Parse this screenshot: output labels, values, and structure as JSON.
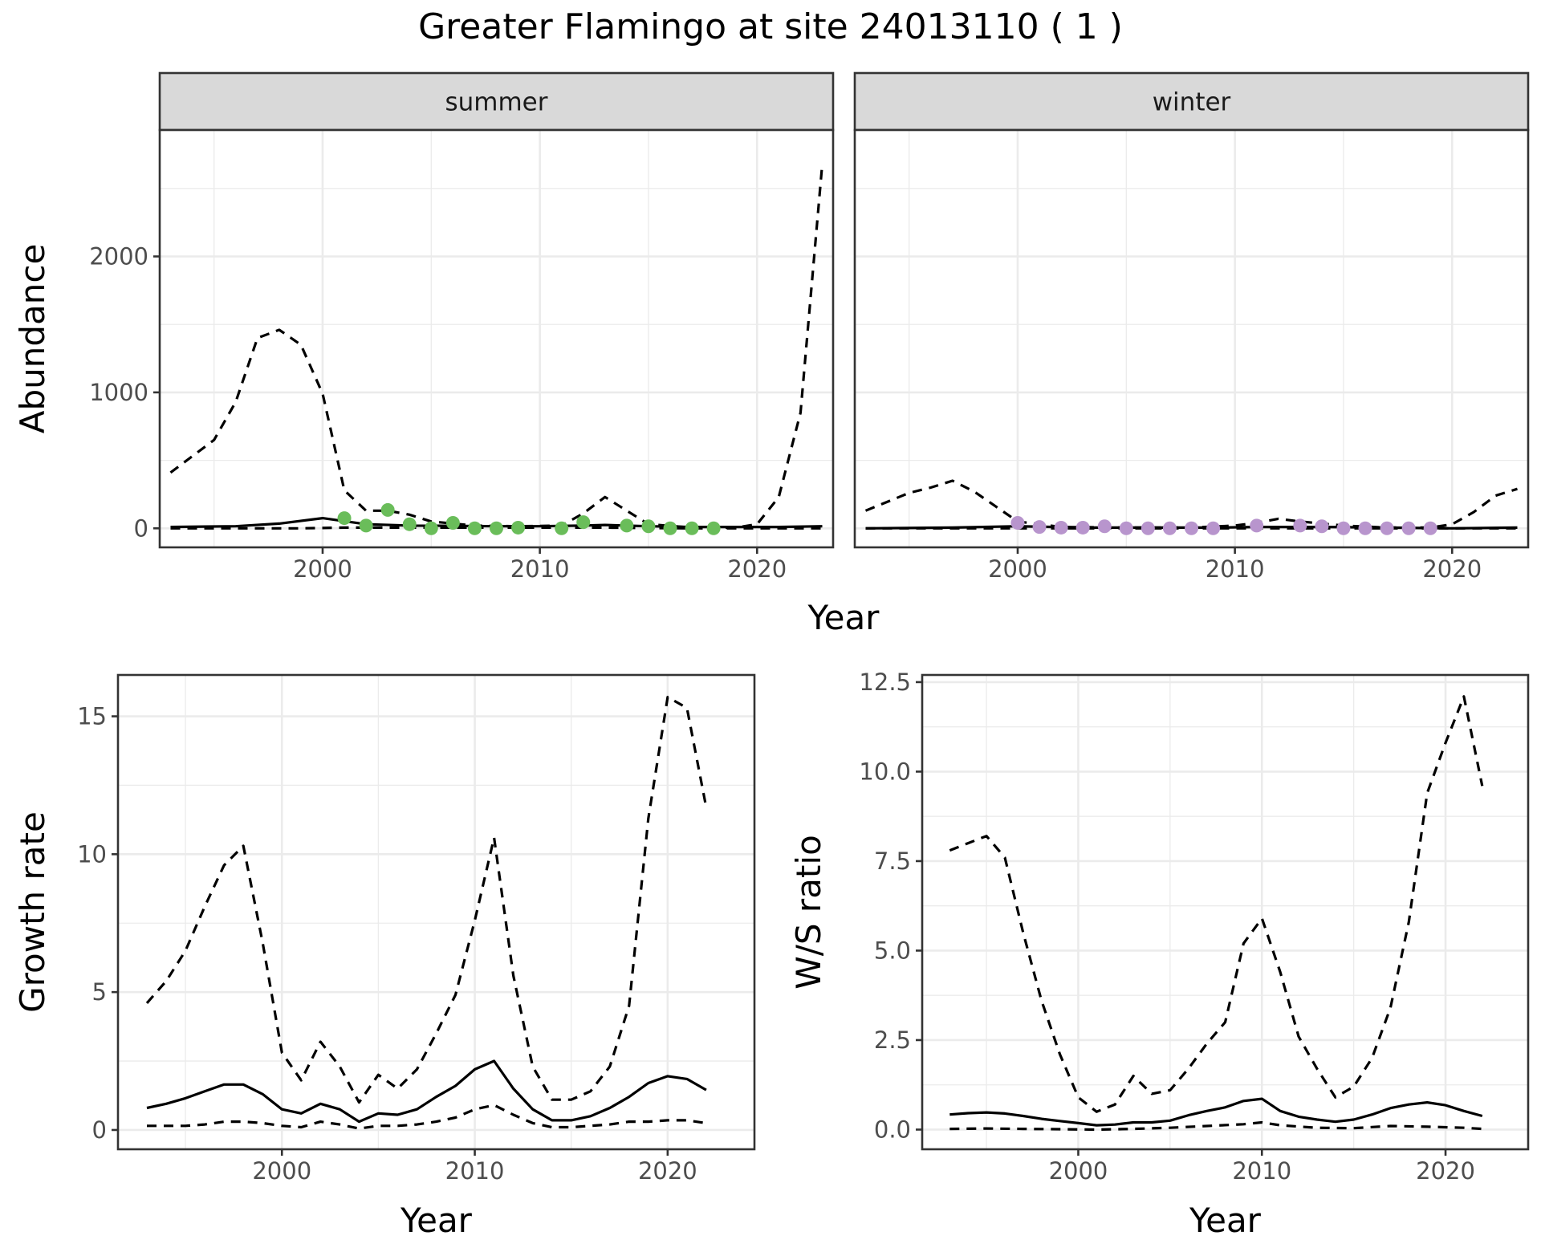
{
  "title": "Greater Flamingo at site 24013110 ( 1 )",
  "colors": {
    "summer_points": "#6abd5a",
    "winter_points": "#b895cd",
    "lines": "#000000",
    "strip_bg": "#d9d9d9",
    "grid": "#ebebeb"
  },
  "chart_data": [
    {
      "type": "line",
      "panel": "abundance",
      "facets": [
        "summer",
        "winter"
      ],
      "xlabel": "Year",
      "ylabel": "Abundance",
      "xlim": [
        1992.5,
        2023.5
      ],
      "ylim": [
        -140,
        2930
      ],
      "xticks": [
        2000,
        2010,
        2020
      ],
      "yticks": [
        0,
        1000,
        2000
      ],
      "grid": true,
      "summer": {
        "estimate": [
          [
            1993,
            10
          ],
          [
            1996,
            15
          ],
          [
            1998,
            35
          ],
          [
            2000,
            75
          ],
          [
            2002,
            30
          ],
          [
            2004,
            20
          ],
          [
            2006,
            18
          ],
          [
            2008,
            15
          ],
          [
            2010,
            15
          ],
          [
            2012,
            20
          ],
          [
            2013,
            25
          ],
          [
            2015,
            15
          ],
          [
            2017,
            10
          ],
          [
            2019,
            10
          ],
          [
            2021,
            10
          ],
          [
            2023,
            15
          ]
        ],
        "upper": [
          [
            1993,
            410
          ],
          [
            1995,
            650
          ],
          [
            1996,
            930
          ],
          [
            1997,
            1400
          ],
          [
            1998,
            1460
          ],
          [
            1999,
            1350
          ],
          [
            2000,
            990
          ],
          [
            2001,
            280
          ],
          [
            2002,
            130
          ],
          [
            2003,
            130
          ],
          [
            2004,
            100
          ],
          [
            2005,
            50
          ],
          [
            2007,
            20
          ],
          [
            2009,
            15
          ],
          [
            2011,
            20
          ],
          [
            2012,
            110
          ],
          [
            2013,
            230
          ],
          [
            2014,
            130
          ],
          [
            2015,
            30
          ],
          [
            2017,
            5
          ],
          [
            2019,
            5
          ],
          [
            2020,
            30
          ],
          [
            2021,
            230
          ],
          [
            2022,
            850
          ],
          [
            2023,
            2680
          ]
        ],
        "lower": [
          [
            1993,
            0
          ],
          [
            1995,
            0
          ],
          [
            1997,
            0
          ],
          [
            1999,
            0
          ],
          [
            2001,
            5
          ],
          [
            2003,
            5
          ],
          [
            2005,
            5
          ],
          [
            2007,
            5
          ],
          [
            2009,
            5
          ],
          [
            2011,
            5
          ],
          [
            2013,
            5
          ],
          [
            2015,
            2
          ],
          [
            2017,
            0
          ],
          [
            2019,
            0
          ],
          [
            2021,
            0
          ],
          [
            2023,
            0
          ]
        ],
        "observed": [
          [
            2001,
            75
          ],
          [
            2002,
            20
          ],
          [
            2003,
            135
          ],
          [
            2004,
            30
          ],
          [
            2005,
            0
          ],
          [
            2006,
            40
          ],
          [
            2007,
            0
          ],
          [
            2008,
            0
          ],
          [
            2009,
            5
          ],
          [
            2011,
            0
          ],
          [
            2012,
            45
          ],
          [
            2014,
            20
          ],
          [
            2015,
            15
          ],
          [
            2016,
            0
          ],
          [
            2017,
            0
          ],
          [
            2018,
            0
          ]
        ]
      },
      "winter": {
        "estimate": [
          [
            1993,
            0
          ],
          [
            1997,
            5
          ],
          [
            2000,
            15
          ],
          [
            2003,
            5
          ],
          [
            2006,
            5
          ],
          [
            2009,
            5
          ],
          [
            2011,
            10
          ],
          [
            2014,
            10
          ],
          [
            2017,
            5
          ],
          [
            2020,
            0
          ],
          [
            2023,
            5
          ]
        ],
        "upper": [
          [
            1993,
            130
          ],
          [
            1995,
            260
          ],
          [
            1996,
            300
          ],
          [
            1997,
            350
          ],
          [
            1998,
            270
          ],
          [
            1999,
            160
          ],
          [
            2000,
            50
          ],
          [
            2002,
            10
          ],
          [
            2005,
            5
          ],
          [
            2008,
            5
          ],
          [
            2010,
            20
          ],
          [
            2011,
            40
          ],
          [
            2012,
            70
          ],
          [
            2013,
            50
          ],
          [
            2015,
            20
          ],
          [
            2017,
            5
          ],
          [
            2019,
            5
          ],
          [
            2020,
            30
          ],
          [
            2021,
            120
          ],
          [
            2022,
            240
          ],
          [
            2023,
            290
          ]
        ],
        "lower": [
          [
            1993,
            0
          ],
          [
            1996,
            0
          ],
          [
            1999,
            0
          ],
          [
            2002,
            0
          ],
          [
            2005,
            0
          ],
          [
            2008,
            0
          ],
          [
            2011,
            0
          ],
          [
            2014,
            0
          ],
          [
            2017,
            0
          ],
          [
            2020,
            0
          ],
          [
            2023,
            0
          ]
        ],
        "observed": [
          [
            2000,
            40
          ],
          [
            2001,
            10
          ],
          [
            2002,
            5
          ],
          [
            2003,
            5
          ],
          [
            2004,
            15
          ],
          [
            2005,
            0
          ],
          [
            2006,
            0
          ],
          [
            2007,
            0
          ],
          [
            2008,
            0
          ],
          [
            2009,
            0
          ],
          [
            2011,
            20
          ],
          [
            2013,
            20
          ],
          [
            2014,
            15
          ],
          [
            2015,
            0
          ],
          [
            2016,
            0
          ],
          [
            2017,
            0
          ],
          [
            2018,
            0
          ],
          [
            2019,
            0
          ]
        ]
      }
    },
    {
      "type": "line",
      "panel": "growth",
      "xlabel": "Year",
      "ylabel": "Growth rate",
      "xlim": [
        1991.5,
        2024.5
      ],
      "ylim": [
        -0.7,
        16.5
      ],
      "xticks": [
        2000,
        2010,
        2020
      ],
      "yticks": [
        0,
        5,
        10,
        15
      ],
      "grid": true,
      "estimate": [
        [
          1993,
          0.8
        ],
        [
          1994,
          0.95
        ],
        [
          1995,
          1.15
        ],
        [
          1996,
          1.4
        ],
        [
          1997,
          1.65
        ],
        [
          1998,
          1.65
        ],
        [
          1999,
          1.3
        ],
        [
          2000,
          0.75
        ],
        [
          2001,
          0.6
        ],
        [
          2002,
          0.95
        ],
        [
          2003,
          0.75
        ],
        [
          2004,
          0.3
        ],
        [
          2005,
          0.6
        ],
        [
          2006,
          0.55
        ],
        [
          2007,
          0.75
        ],
        [
          2008,
          1.2
        ],
        [
          2009,
          1.6
        ],
        [
          2010,
          2.2
        ],
        [
          2011,
          2.5
        ],
        [
          2012,
          1.5
        ],
        [
          2013,
          0.75
        ],
        [
          2014,
          0.35
        ],
        [
          2015,
          0.35
        ],
        [
          2016,
          0.5
        ],
        [
          2017,
          0.8
        ],
        [
          2018,
          1.2
        ],
        [
          2019,
          1.7
        ],
        [
          2020,
          1.95
        ],
        [
          2021,
          1.85
        ],
        [
          2022,
          1.45
        ]
      ],
      "upper": [
        [
          1993,
          4.6
        ],
        [
          1994,
          5.4
        ],
        [
          1995,
          6.5
        ],
        [
          1996,
          8.1
        ],
        [
          1997,
          9.6
        ],
        [
          1998,
          10.3
        ],
        [
          1999,
          6.8
        ],
        [
          2000,
          2.8
        ],
        [
          2001,
          1.8
        ],
        [
          2002,
          3.2
        ],
        [
          2003,
          2.3
        ],
        [
          2004,
          1.0
        ],
        [
          2005,
          2.0
        ],
        [
          2006,
          1.5
        ],
        [
          2007,
          2.2
        ],
        [
          2008,
          3.5
        ],
        [
          2009,
          4.9
        ],
        [
          2010,
          7.6
        ],
        [
          2011,
          10.6
        ],
        [
          2012,
          5.6
        ],
        [
          2013,
          2.3
        ],
        [
          2014,
          1.1
        ],
        [
          2015,
          1.1
        ],
        [
          2016,
          1.4
        ],
        [
          2017,
          2.3
        ],
        [
          2018,
          4.5
        ],
        [
          2019,
          11.3
        ],
        [
          2020,
          15.7
        ],
        [
          2021,
          15.3
        ],
        [
          2022,
          11.7
        ]
      ],
      "lower": [
        [
          1993,
          0.15
        ],
        [
          1995,
          0.15
        ],
        [
          1996,
          0.2
        ],
        [
          1997,
          0.3
        ],
        [
          1998,
          0.3
        ],
        [
          1999,
          0.25
        ],
        [
          2000,
          0.15
        ],
        [
          2001,
          0.1
        ],
        [
          2002,
          0.3
        ],
        [
          2003,
          0.2
        ],
        [
          2004,
          0.05
        ],
        [
          2005,
          0.15
        ],
        [
          2006,
          0.15
        ],
        [
          2007,
          0.2
        ],
        [
          2008,
          0.3
        ],
        [
          2009,
          0.45
        ],
        [
          2010,
          0.75
        ],
        [
          2011,
          0.9
        ],
        [
          2012,
          0.55
        ],
        [
          2013,
          0.25
        ],
        [
          2014,
          0.1
        ],
        [
          2015,
          0.1
        ],
        [
          2016,
          0.15
        ],
        [
          2017,
          0.2
        ],
        [
          2018,
          0.3
        ],
        [
          2019,
          0.3
        ],
        [
          2020,
          0.35
        ],
        [
          2021,
          0.35
        ],
        [
          2022,
          0.25
        ]
      ]
    },
    {
      "type": "line",
      "panel": "ratio",
      "xlabel": "Year",
      "ylabel": "W/S ratio",
      "xlim": [
        1991.5,
        2024.5
      ],
      "ylim": [
        -0.55,
        12.7
      ],
      "xticks": [
        2000,
        2010,
        2020
      ],
      "yticks": [
        "0.0",
        "2.5",
        "5.0",
        "7.5",
        "10.0",
        "12.5"
      ],
      "grid": true,
      "estimate": [
        [
          1993,
          0.42
        ],
        [
          1994,
          0.46
        ],
        [
          1995,
          0.48
        ],
        [
          1996,
          0.45
        ],
        [
          1997,
          0.38
        ],
        [
          1998,
          0.3
        ],
        [
          1999,
          0.24
        ],
        [
          2000,
          0.18
        ],
        [
          2001,
          0.12
        ],
        [
          2002,
          0.14
        ],
        [
          2003,
          0.2
        ],
        [
          2004,
          0.2
        ],
        [
          2005,
          0.25
        ],
        [
          2006,
          0.4
        ],
        [
          2007,
          0.52
        ],
        [
          2008,
          0.62
        ],
        [
          2009,
          0.8
        ],
        [
          2010,
          0.86
        ],
        [
          2011,
          0.52
        ],
        [
          2012,
          0.36
        ],
        [
          2013,
          0.28
        ],
        [
          2014,
          0.22
        ],
        [
          2015,
          0.28
        ],
        [
          2016,
          0.42
        ],
        [
          2017,
          0.6
        ],
        [
          2018,
          0.7
        ],
        [
          2019,
          0.76
        ],
        [
          2020,
          0.68
        ],
        [
          2021,
          0.52
        ],
        [
          2022,
          0.38
        ]
      ],
      "upper": [
        [
          1993,
          7.8
        ],
        [
          1994,
          8.0
        ],
        [
          1995,
          8.2
        ],
        [
          1996,
          7.6
        ],
        [
          1997,
          5.5
        ],
        [
          1998,
          3.6
        ],
        [
          1999,
          2.1
        ],
        [
          2000,
          0.9
        ],
        [
          2001,
          0.5
        ],
        [
          2002,
          0.7
        ],
        [
          2003,
          1.5
        ],
        [
          2004,
          1.0
        ],
        [
          2005,
          1.1
        ],
        [
          2006,
          1.7
        ],
        [
          2007,
          2.4
        ],
        [
          2008,
          3.0
        ],
        [
          2009,
          5.2
        ],
        [
          2010,
          5.9
        ],
        [
          2011,
          4.4
        ],
        [
          2012,
          2.6
        ],
        [
          2013,
          1.7
        ],
        [
          2014,
          0.9
        ],
        [
          2015,
          1.2
        ],
        [
          2016,
          2.0
        ],
        [
          2017,
          3.4
        ],
        [
          2018,
          5.8
        ],
        [
          2019,
          9.4
        ],
        [
          2020,
          10.8
        ],
        [
          2021,
          12.1
        ],
        [
          2022,
          9.6
        ]
      ],
      "lower": [
        [
          1993,
          0.02
        ],
        [
          1995,
          0.03
        ],
        [
          1997,
          0.02
        ],
        [
          1999,
          0.01
        ],
        [
          2001,
          0.0
        ],
        [
          2003,
          0.02
        ],
        [
          2005,
          0.05
        ],
        [
          2007,
          0.1
        ],
        [
          2009,
          0.15
        ],
        [
          2010,
          0.2
        ],
        [
          2011,
          0.12
        ],
        [
          2013,
          0.05
        ],
        [
          2015,
          0.04
        ],
        [
          2017,
          0.1
        ],
        [
          2019,
          0.08
        ],
        [
          2021,
          0.05
        ],
        [
          2022,
          0.02
        ]
      ]
    }
  ]
}
